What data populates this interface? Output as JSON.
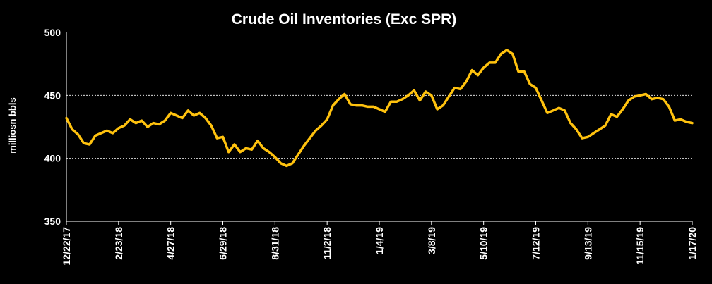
{
  "chart_data": {
    "type": "line",
    "title": "Crude Oil Inventories (Exc SPR)",
    "ylabel": "milliosn bbls",
    "xlabel": "",
    "ylim": [
      350,
      500
    ],
    "yticks": [
      350,
      400,
      450,
      500
    ],
    "grid": {
      "horizontal": true,
      "values": [
        400,
        450
      ]
    },
    "legend": "none",
    "x_tick_labels": [
      "12/22/17",
      "2/23/18",
      "4/27/18",
      "6/29/18",
      "8/31/18",
      "11/2/18",
      "1/4/19",
      "3/8/19",
      "5/10/19",
      "7/12/19",
      "9/13/19",
      "11/15/19",
      "1/17/20"
    ],
    "series": [
      {
        "name": "",
        "color": "#FFC20E",
        "values": [
          432,
          423,
          419,
          412,
          411,
          418,
          420,
          422,
          420,
          424,
          426,
          431,
          428,
          430,
          425,
          428,
          427,
          430,
          436,
          434,
          432,
          438,
          434,
          436,
          432,
          426,
          416,
          417,
          405,
          411,
          405,
          408,
          407,
          414,
          408,
          405,
          401,
          396,
          394,
          396,
          403,
          410,
          416,
          422,
          426,
          431,
          442,
          447,
          451,
          443,
          442,
          442,
          441,
          441,
          439,
          437,
          445,
          445,
          447,
          450,
          454,
          446,
          453,
          450,
          439,
          442,
          449,
          456,
          455,
          461,
          470,
          466,
          472,
          476,
          476,
          483,
          486,
          483,
          469,
          469,
          459,
          456,
          446,
          436,
          438,
          440,
          438,
          428,
          423,
          416,
          417,
          420,
          423,
          426,
          435,
          433,
          439,
          446,
          449,
          450,
          451,
          447,
          448,
          447,
          441,
          430,
          431,
          429,
          428
        ]
      }
    ]
  }
}
